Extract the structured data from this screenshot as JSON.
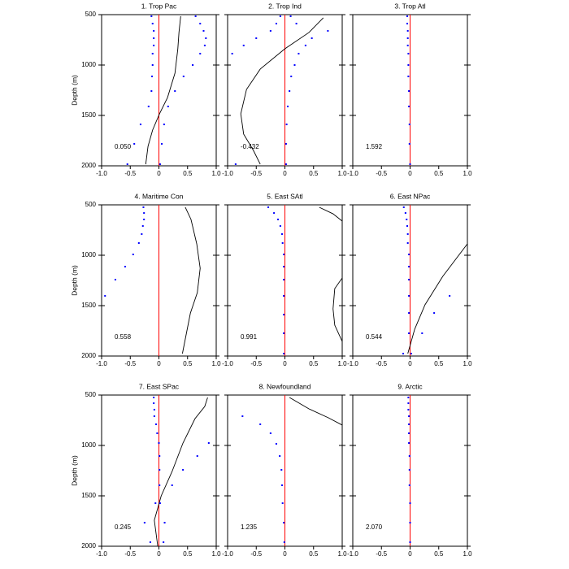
{
  "chart_data": [
    {
      "type": "profile",
      "title": "1. Trop Pac",
      "annotation": "0.050",
      "ylabel": "Depth (m)",
      "ytick_labels": true,
      "xlim": [
        -1,
        1
      ],
      "xticks": [
        {
          "value": -1,
          "label": "-1.0"
        },
        -0.5,
        0,
        0.5,
        {
          "value": 1,
          "label": "1.0"
        }
      ],
      "ylim": [
        2000,
        500
      ],
      "yticks": [
        500,
        1000,
        1500,
        2000
      ],
      "vline": 0,
      "vline_color": "#ff0000",
      "series": [
        {
          "style": "line",
          "color": "#000000",
          "x": [
            0.38,
            0.35,
            0.33,
            0.28,
            0.15,
            0.01,
            -0.11,
            -0.19,
            -0.23
          ],
          "y": [
            516,
            677,
            839,
            1081,
            1323,
            1484,
            1645,
            1806,
            1984
          ]
        },
        {
          "style": "dots",
          "color": "#0000ff",
          "x": [
            -0.13,
            -0.11,
            -0.09,
            -0.09,
            -0.09,
            -0.11,
            -0.11,
            -0.12,
            -0.13,
            -0.18,
            -0.32,
            -0.43,
            -0.55
          ],
          "y": [
            516,
            589,
            661,
            734,
            806,
            887,
            1000,
            1113,
            1258,
            1411,
            1589,
            1782,
            1984
          ]
        },
        {
          "style": "dots",
          "color": "#0000ff",
          "x": [
            0.64,
            0.72,
            0.78,
            0.82,
            0.8,
            0.72,
            0.59,
            0.43,
            0.28,
            0.16,
            0.09,
            0.05,
            0.02
          ],
          "y": [
            516,
            589,
            661,
            734,
            806,
            887,
            1000,
            1113,
            1258,
            1411,
            1589,
            1782,
            1984
          ]
        }
      ]
    },
    {
      "type": "profile",
      "title": "2. Trop Ind",
      "annotation": "-0.432",
      "ytick_labels": false,
      "xlim": [
        -1,
        1
      ],
      "xticks": [
        {
          "value": -1,
          "label": "-1.0"
        },
        -0.5,
        0,
        0.5,
        {
          "value": 1,
          "label": "1.0"
        }
      ],
      "ylim": [
        2000,
        500
      ],
      "yticks": [
        500,
        1000,
        1500,
        2000
      ],
      "vline": 0,
      "vline_color": "#ff0000",
      "series": [
        {
          "style": "line",
          "color": "#000000",
          "x": [
            0.67,
            0.42,
            0,
            -0.43,
            -0.67,
            -0.77,
            -0.72,
            -0.55,
            -0.43
          ],
          "y": [
            532,
            677,
            839,
            1040,
            1242,
            1484,
            1685,
            1847,
            1984
          ]
        },
        {
          "style": "dots",
          "color": "#0000ff",
          "x": [
            -0.08,
            -0.15,
            -0.25,
            -0.5,
            -0.72,
            -0.92,
            -0.86
          ],
          "y": [
            516,
            589,
            661,
            734,
            806,
            887,
            1984
          ]
        },
        {
          "style": "dots",
          "color": "#0000ff",
          "x": [
            0.1,
            0.2,
            0.75,
            0.47,
            0.36,
            0.24,
            0.17,
            0.11,
            0.08,
            0.05,
            0.03,
            0.02,
            0.02
          ],
          "y": [
            516,
            589,
            661,
            734,
            806,
            887,
            1000,
            1113,
            1258,
            1411,
            1589,
            1782,
            1984
          ]
        }
      ]
    },
    {
      "type": "profile",
      "title": "3. Trop Atl",
      "annotation": "1.592",
      "ytick_labels": false,
      "xlim": [
        -1,
        1
      ],
      "xticks": [
        {
          "value": -1,
          "label": "-1.0"
        },
        -0.5,
        0,
        0.5,
        {
          "value": 1,
          "label": "1.0"
        }
      ],
      "ylim": [
        2000,
        500
      ],
      "yticks": [
        500,
        1000,
        1500,
        2000
      ],
      "vline": 0,
      "vline_color": "#ff0000",
      "series": [
        {
          "style": "dots",
          "color": "#0000ff",
          "x": [
            -0.05,
            -0.05,
            -0.04,
            -0.04,
            -0.04,
            -0.03,
            -0.03,
            -0.03,
            -0.02,
            -0.02,
            -0.01,
            -0.01,
            0
          ],
          "y": [
            516,
            589,
            661,
            734,
            806,
            887,
            1000,
            1113,
            1258,
            1411,
            1589,
            1782,
            1984
          ]
        }
      ]
    },
    {
      "type": "profile",
      "title": "4. Maritime Con",
      "annotation": "0.558",
      "ylabel": "Depth (m)",
      "ytick_labels": true,
      "xlim": [
        -1,
        1
      ],
      "xticks": [
        {
          "value": -1,
          "label": "-1.0"
        },
        -0.5,
        0,
        0.5,
        {
          "value": 1,
          "label": "1.0"
        }
      ],
      "ylim": [
        2000,
        500
      ],
      "yticks": [
        500,
        1000,
        1500,
        2000
      ],
      "vline": 0,
      "vline_color": "#ff0000",
      "series": [
        {
          "style": "line",
          "color": "#000000",
          "x": [
            0.46,
            0.56,
            0.66,
            0.72,
            0.67,
            0.55,
            0.48,
            0.41
          ],
          "y": [
            524,
            645,
            887,
            1129,
            1371,
            1573,
            1774,
            1976
          ]
        },
        {
          "style": "dots",
          "color": "#0000ff",
          "x": [
            -0.27,
            -0.26,
            -0.26,
            -0.28,
            -0.3,
            -0.35,
            -0.45,
            -0.59,
            -0.76,
            -0.94
          ],
          "y": [
            524,
            581,
            645,
            710,
            790,
            879,
            992,
            1113,
            1242,
            1403
          ]
        }
      ]
    },
    {
      "type": "profile",
      "title": "5. East SAtl",
      "annotation": "0.991",
      "ytick_labels": false,
      "xlim": [
        -1,
        1
      ],
      "xticks": [
        {
          "value": -1,
          "label": "-1.0"
        },
        -0.5,
        0,
        0.5,
        {
          "value": 1,
          "label": "1.0"
        }
      ],
      "ylim": [
        2000,
        500
      ],
      "yticks": [
        500,
        1000,
        1500,
        2000
      ],
      "vline": 0,
      "vline_color": "#ff0000",
      "series": [
        {
          "style": "line",
          "color": "#000000",
          "x": [
            0.6,
            0.84,
            1.0,
            null,
            1.0,
            0.87,
            0.84,
            0.87,
            1.0
          ],
          "y": [
            524,
            589,
            661,
            null,
            1226,
            1331,
            1532,
            1694,
            1855
          ]
        },
        {
          "style": "dots",
          "color": "#0000ff",
          "x": [
            -0.29,
            -0.19,
            -0.12,
            -0.08,
            -0.05,
            -0.04,
            -0.02,
            -0.02,
            -0.02,
            -0.02,
            -0.02,
            -0.02,
            -0.02
          ],
          "y": [
            524,
            581,
            645,
            710,
            790,
            879,
            992,
            1113,
            1242,
            1403,
            1589,
            1774,
            1976
          ]
        }
      ]
    },
    {
      "type": "profile",
      "title": "6. East NPac",
      "annotation": "0.544",
      "ytick_labels": false,
      "xlim": [
        -1,
        1
      ],
      "xticks": [
        {
          "value": -1,
          "label": "-1.0"
        },
        -0.5,
        0,
        0.5,
        {
          "value": 1,
          "label": "1.0"
        }
      ],
      "ylim": [
        2000,
        500
      ],
      "yticks": [
        500,
        1000,
        1500,
        2000
      ],
      "vline": 0,
      "vline_color": "#ff0000",
      "series": [
        {
          "style": "line",
          "color": "#000000",
          "x": [
            1.0,
            0.57,
            0.26,
            0.08,
            -0.04
          ],
          "y": [
            887,
            1210,
            1492,
            1734,
            1976
          ]
        },
        {
          "style": "dots",
          "color": "#0000ff",
          "x": [
            -0.11,
            -0.08,
            -0.06,
            -0.05,
            -0.04,
            -0.04,
            -0.02,
            -0.02,
            -0.02,
            -0.02,
            -0.02,
            -0.02,
            0.02
          ],
          "y": [
            524,
            581,
            645,
            710,
            790,
            879,
            992,
            1113,
            1242,
            1403,
            1573,
            1774,
            1976
          ]
        },
        {
          "style": "dots",
          "color": "#0000ff",
          "x": [
            0.69,
            0.42,
            0.21,
            -0.12
          ],
          "y": [
            1403,
            1573,
            1774,
            1976
          ]
        }
      ]
    },
    {
      "type": "profile",
      "title": "7. East SPac",
      "annotation": "0.245",
      "ylabel": "Depth (m)",
      "ytick_labels": true,
      "xlim": [
        -1,
        1
      ],
      "xticks": [
        {
          "value": -1,
          "label": "-1.0"
        },
        -0.5,
        0,
        0.5,
        {
          "value": 1,
          "label": "1.0"
        }
      ],
      "ylim": [
        2000,
        500
      ],
      "yticks": [
        500,
        1000,
        1500,
        2000
      ],
      "vline": 0,
      "vline_color": "#ff0000",
      "series": [
        {
          "style": "line",
          "color": "#000000",
          "x": [
            0.85,
            0.8,
            0.63,
            0.42,
            0.23,
            0.04,
            -0.08,
            -0.02
          ],
          "y": [
            524,
            613,
            734,
            976,
            1258,
            1500,
            1742,
            2000
          ]
        },
        {
          "style": "dots",
          "color": "#0000ff",
          "x": [
            -0.09,
            -0.09,
            -0.08,
            -0.08,
            -0.05,
            -0.03,
            0.0,
            0.01,
            0.01,
            0.01,
            0.02,
            0.1,
            0.08
          ],
          "y": [
            524,
            581,
            645,
            710,
            790,
            879,
            976,
            1105,
            1242,
            1395,
            1573,
            1766,
            1960
          ]
        },
        {
          "style": "dots",
          "color": "#0000ff",
          "x": [
            0.87,
            0.67,
            0.42,
            0.23,
            -0.06,
            -0.25,
            -0.15
          ],
          "y": [
            976,
            1105,
            1242,
            1395,
            1573,
            1766,
            1960
          ]
        }
      ]
    },
    {
      "type": "profile",
      "title": "8. Newfoundland",
      "annotation": "1.235",
      "ytick_labels": false,
      "xlim": [
        -1,
        1
      ],
      "xticks": [
        {
          "value": -1,
          "label": "-1.0"
        },
        -0.5,
        0,
        0.5,
        {
          "value": 1,
          "label": "1.0"
        }
      ],
      "ylim": [
        2000,
        500
      ],
      "yticks": [
        500,
        1000,
        1500,
        2000
      ],
      "vline": 0,
      "vline_color": "#ff0000",
      "series": [
        {
          "style": "line",
          "color": "#000000",
          "x": [
            0.08,
            0.42,
            0.76,
            1.0
          ],
          "y": [
            524,
            637,
            726,
            798
          ]
        },
        {
          "style": "dots",
          "color": "#0000ff",
          "x": [
            -0.74,
            -0.43,
            -0.25,
            -0.15,
            -0.09,
            -0.06,
            -0.05,
            -0.04,
            -0.02,
            -0.01
          ],
          "y": [
            710,
            790,
            879,
            984,
            1105,
            1242,
            1395,
            1573,
            1766,
            1960
          ]
        }
      ]
    },
    {
      "type": "profile",
      "title": "9. Arctic",
      "annotation": "2.070",
      "ytick_labels": false,
      "xlim": [
        -1,
        1
      ],
      "xticks": [
        {
          "value": -1,
          "label": "-1.0"
        },
        -0.5,
        0,
        0.5,
        {
          "value": 1,
          "label": "1.0"
        }
      ],
      "ylim": [
        2000,
        500
      ],
      "yticks": [
        500,
        1000,
        1500,
        2000
      ],
      "vline": 0,
      "vline_color": "#ff0000",
      "series": [
        {
          "style": "dots",
          "color": "#0000ff",
          "x": [
            -0.03,
            -0.03,
            -0.03,
            -0.02,
            -0.02,
            -0.02,
            -0.02,
            -0.01,
            -0.01,
            -0.01,
            0,
            0,
            0
          ],
          "y": [
            524,
            581,
            645,
            710,
            790,
            879,
            976,
            1105,
            1242,
            1395,
            1573,
            1766,
            1960
          ]
        }
      ]
    }
  ]
}
